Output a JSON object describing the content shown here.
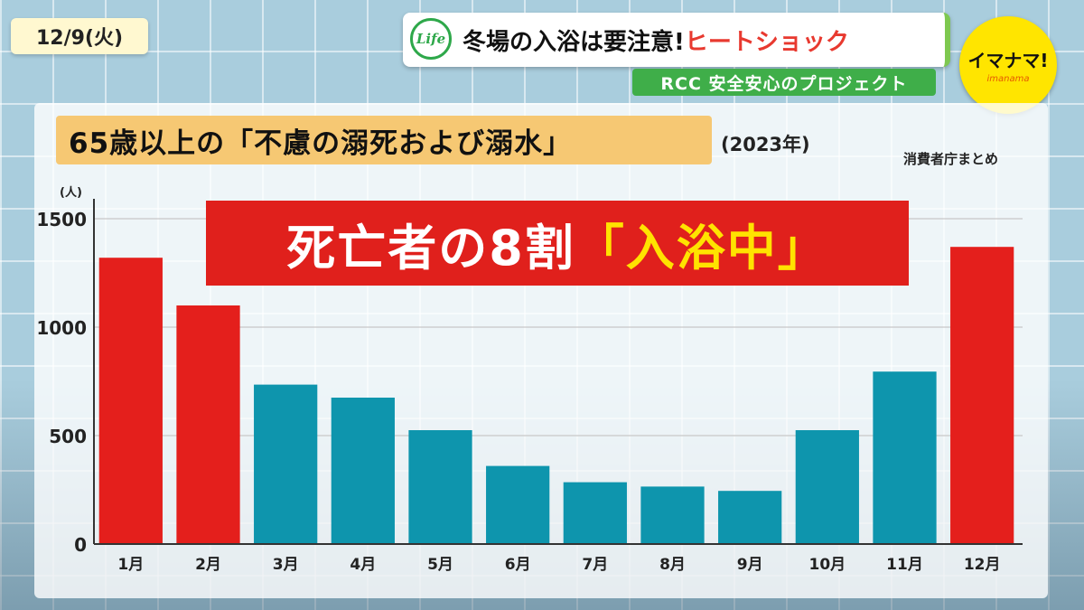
{
  "header": {
    "date": "12/9(火)",
    "life_logo": "Life",
    "topic_main": "冬場の入浴は要注意!",
    "topic_accent": "ヒートショック",
    "project": "RCC 安全安心のプロジェクト",
    "show_logo": "イマナマ!",
    "show_logo_sub": "imanama"
  },
  "chart_header": {
    "title": "65歳以上の「不慮の溺死および溺水」",
    "year": "(2023年)",
    "source": "消費者庁まとめ",
    "unit": "(人)",
    "callout_main": "死亡者の8割",
    "callout_highlight": "「入浴中」"
  },
  "colors": {
    "highlight_bar": "#e41f1c",
    "normal_bar": "#0e95ad",
    "title_bg": "#f6c873",
    "callout_bg": "#e0201c",
    "project_bar": "#3fae49",
    "show_logo_bg": "#ffe500"
  },
  "chart_data": {
    "type": "bar",
    "categories": [
      "1月",
      "2月",
      "3月",
      "4月",
      "5月",
      "6月",
      "7月",
      "8月",
      "9月",
      "10月",
      "11月",
      "12月"
    ],
    "values": [
      1320,
      1100,
      735,
      675,
      525,
      360,
      285,
      265,
      245,
      525,
      795,
      1370
    ],
    "highlighted": [
      true,
      true,
      false,
      false,
      false,
      false,
      false,
      false,
      false,
      false,
      false,
      true
    ],
    "title": "65歳以上の「不慮の溺死および溺水」",
    "xlabel": "",
    "ylabel": "(人)",
    "ylim": [
      0,
      1500
    ],
    "yticks": [
      0,
      500,
      1000,
      1500
    ],
    "grid": true
  }
}
